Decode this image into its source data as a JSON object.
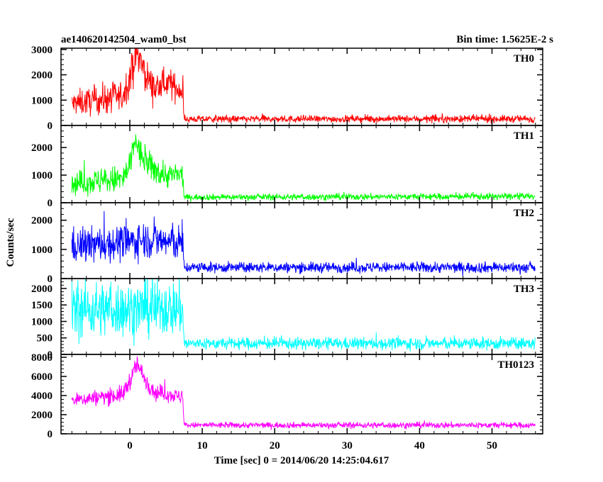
{
  "header": {
    "left_title": "ae140620142504_wam0_bst",
    "right_title": "Bin time: 1.5625E-2 s"
  },
  "chart_data": {
    "type": "line",
    "title": "ae140620142504_wam0_bst",
    "subtitle": "Bin time: 1.5625E-2 s",
    "xlabel": "Time [sec] 0 = 2014/06/20 14:25:04.617",
    "ylabel": "Counts/sec",
    "xlim": [
      -9.5,
      57
    ],
    "x_ticks": [
      0,
      10,
      20,
      30,
      40,
      50
    ],
    "x_tick_labels": [
      "0",
      "10",
      "20",
      "30",
      "40",
      "50"
    ],
    "x_data_range": [
      -8,
      56
    ],
    "grid": false,
    "panels": [
      {
        "name": "TH0",
        "color": "#ff0000",
        "ylim": [
          0,
          3050
        ],
        "y_ticks": [
          0,
          1000,
          2000,
          3000
        ],
        "y_tick_labels": [
          "0",
          "1000",
          "2000",
          "3000"
        ],
        "profile": [
          [
            -8,
            850
          ],
          [
            -1,
            1150
          ],
          [
            0.5,
            2300
          ],
          [
            1,
            2900
          ],
          [
            2,
            2100
          ],
          [
            3.5,
            1400
          ],
          [
            5,
            1700
          ],
          [
            7.3,
            1350
          ],
          [
            7.5,
            250
          ],
          [
            56,
            260
          ]
        ],
        "noise": [
          [
            -8,
            450
          ],
          [
            0,
            600
          ],
          [
            3,
            550
          ],
          [
            7.3,
            450
          ],
          [
            7.5,
            120
          ],
          [
            56,
            130
          ]
        ]
      },
      {
        "name": "TH1",
        "color": "#00ff00",
        "ylim": [
          0,
          2800
        ],
        "y_ticks": [
          0,
          1000,
          2000
        ],
        "y_tick_labels": [
          "0",
          "1000",
          "2000"
        ],
        "profile": [
          [
            -8,
            700
          ],
          [
            -1,
            850
          ],
          [
            0,
            1300
          ],
          [
            0.8,
            2300
          ],
          [
            1.5,
            1700
          ],
          [
            3,
            1250
          ],
          [
            5,
            1000
          ],
          [
            7.3,
            1000
          ],
          [
            7.5,
            200
          ],
          [
            56,
            230
          ]
        ],
        "noise": [
          [
            -8,
            380
          ],
          [
            1,
            500
          ],
          [
            7.3,
            380
          ],
          [
            7.5,
            100
          ],
          [
            56,
            110
          ]
        ]
      },
      {
        "name": "TH2",
        "color": "#0000ff",
        "ylim": [
          0,
          2600
        ],
        "y_ticks": [
          0,
          1000,
          2000
        ],
        "y_tick_labels": [
          "0",
          "1000",
          "2000"
        ],
        "profile": [
          [
            -8,
            1100
          ],
          [
            0,
            1250
          ],
          [
            2,
            1350
          ],
          [
            7.3,
            1200
          ],
          [
            7.5,
            380
          ],
          [
            56,
            380
          ]
        ],
        "noise": [
          [
            -8,
            550
          ],
          [
            7.3,
            560
          ],
          [
            7.5,
            160
          ],
          [
            56,
            170
          ]
        ]
      },
      {
        "name": "TH3",
        "color": "#00ffff",
        "ylim": [
          0,
          2300
        ],
        "y_ticks": [
          0,
          500,
          1000,
          1500,
          2000
        ],
        "y_tick_labels": [
          "0",
          "500",
          "1000",
          "1500",
          "2000"
        ],
        "profile": [
          [
            -8,
            1350
          ],
          [
            7.3,
            1400
          ],
          [
            7.5,
            330
          ],
          [
            56,
            330
          ]
        ],
        "noise": [
          [
            -8,
            750
          ],
          [
            7.3,
            760
          ],
          [
            7.5,
            160
          ],
          [
            56,
            170
          ]
        ]
      },
      {
        "name": "TH0123",
        "color": "#ff00ff",
        "ylim": [
          0,
          8300
        ],
        "y_ticks": [
          0,
          2000,
          4000,
          6000,
          8000
        ],
        "y_tick_labels": [
          "0",
          "2000",
          "4000",
          "6000",
          "8000"
        ],
        "profile": [
          [
            -8,
            3500
          ],
          [
            -1,
            4100
          ],
          [
            0.5,
            6300
          ],
          [
            1,
            7300
          ],
          [
            2,
            5800
          ],
          [
            3.5,
            4300
          ],
          [
            5,
            4200
          ],
          [
            7.3,
            3800
          ],
          [
            7.5,
            900
          ],
          [
            56,
            900
          ]
        ],
        "noise": [
          [
            -8,
            650
          ],
          [
            1,
            900
          ],
          [
            7.3,
            650
          ],
          [
            7.5,
            280
          ],
          [
            56,
            290
          ]
        ]
      }
    ]
  }
}
